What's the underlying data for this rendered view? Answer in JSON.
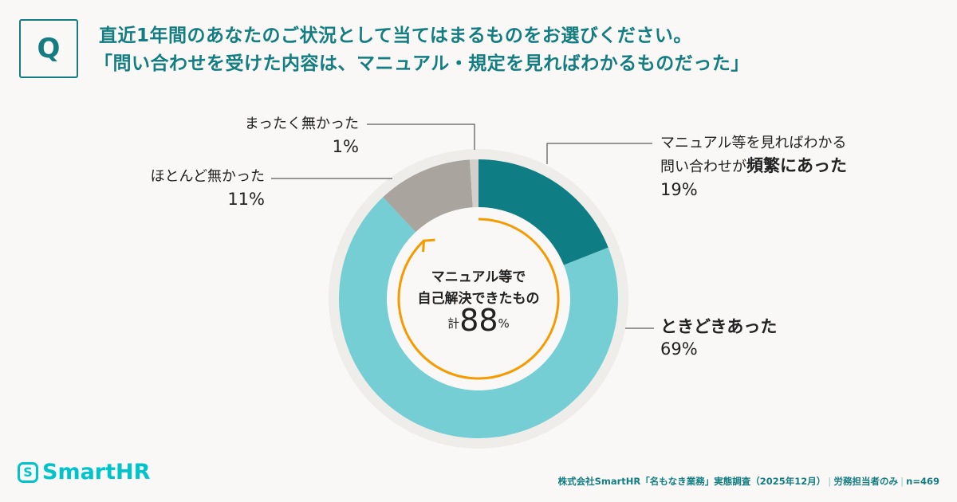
{
  "header": {
    "q_label": "Q",
    "title_line1": "直近1年間のあなたのご状況として当てはまるものをお選びください。",
    "title_line2": "「問い合わせを受けた内容は、マニュアル・規定を見ればわかるものだった」"
  },
  "chart_data": {
    "type": "pie",
    "donut": true,
    "slices": [
      {
        "label": "マニュアル等を見ればわかる問い合わせが頻繁にあった",
        "value": 19,
        "color": "#0f7e84"
      },
      {
        "label": "ときどきあった",
        "value": 69,
        "color": "#74ced3"
      },
      {
        "label": "ほとんど無かった",
        "value": 11,
        "color": "#a9a49e"
      },
      {
        "label": "まったく無かった",
        "value": 1,
        "color": "#d3d0cc"
      }
    ],
    "start": "top",
    "direction": "clockwise",
    "center_annotation": {
      "line1": "マニュアル等で",
      "line2": "自己解決できたもの",
      "prefix": "計",
      "value": "88",
      "unit": "%",
      "arrow_color": "#f59b00",
      "arrow_value": 88
    }
  },
  "labels": {
    "frequent_line1": "マニュアル等を見ればわかる",
    "frequent_line2a": "問い合わせが",
    "frequent_line2b": "頻繁にあった",
    "frequent_pct": "19%",
    "sometimes": "ときどきあった",
    "sometimes_pct": "69%",
    "rarely": "ほとんど無かった",
    "rarely_pct": "11%",
    "never": "まったく無かった",
    "never_pct": "1%"
  },
  "footer": {
    "logo": "SmartHR",
    "logo_mark": "S",
    "source": "株式会社SmartHR「名もなき業務」実態調査（2025年12月）",
    "scope": "労務担当者のみ",
    "n": "n=469"
  }
}
